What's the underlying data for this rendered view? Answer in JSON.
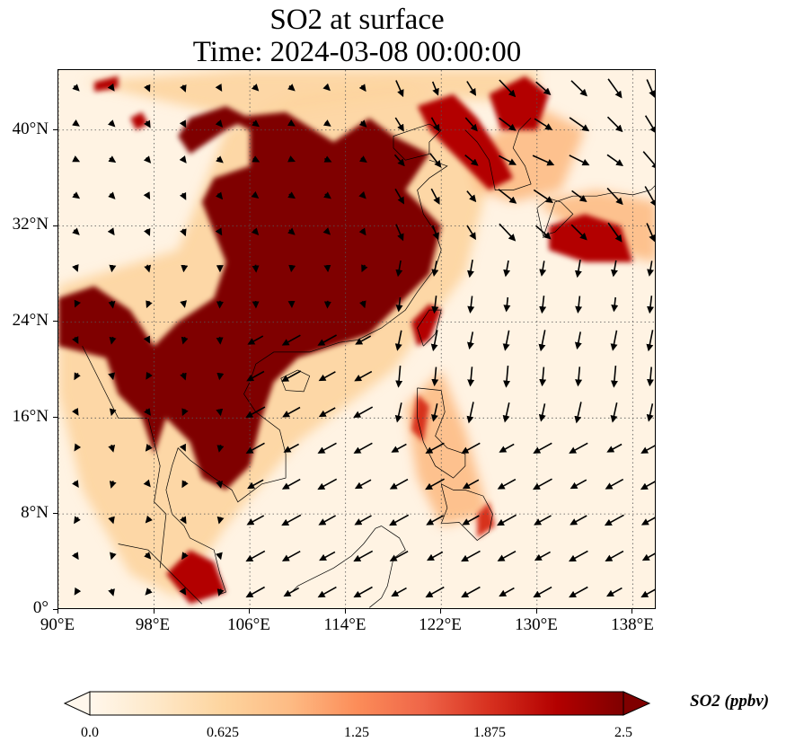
{
  "title": {
    "line1": "SO2 at surface",
    "line2": "Time: 2024-03-08 00:00:00"
  },
  "map": {
    "lon_range": [
      90,
      140
    ],
    "lat_range": [
      0,
      45
    ],
    "gridlines": "dotted",
    "x_ticks": [
      "90°E",
      "98°E",
      "106°E",
      "114°E",
      "122°E",
      "130°E",
      "138°E"
    ],
    "y_ticks": [
      "0°",
      "8°N",
      "16°N",
      "24°N",
      "32°N",
      "40°N"
    ],
    "field": "SO2 surface concentration",
    "overlay": "wind vectors (black arrows)"
  },
  "colorbar": {
    "title": "SO2 (ppbv)",
    "min": 0.0,
    "max": 2.5,
    "extend": "both",
    "colormap": "OrRd",
    "ticks": [
      "0.0",
      "0.625",
      "1.25",
      "1.875",
      "2.5"
    ],
    "colors": [
      "#fff7ec",
      "#fee8c8",
      "#fdd49e",
      "#fdbb84",
      "#fc8d59",
      "#ef6548",
      "#d7301f",
      "#b30000",
      "#7f0000"
    ]
  }
}
